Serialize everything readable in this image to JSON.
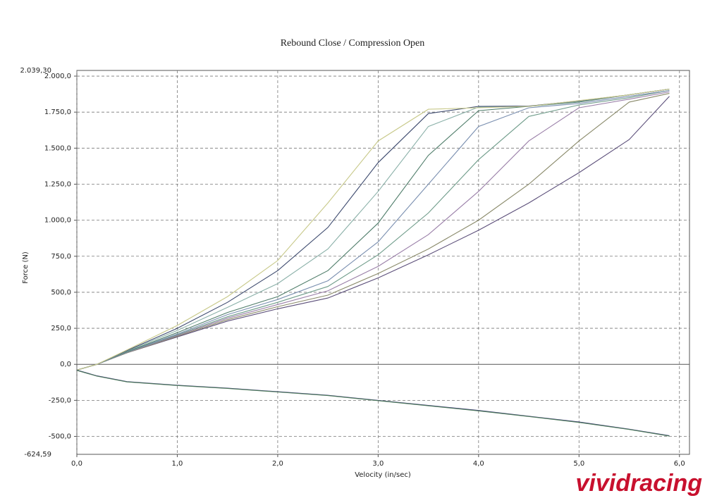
{
  "chart_data": {
    "type": "line",
    "title": "Rebound Close / Compression Open",
    "x_label": "Velocity (in/sec)",
    "y_label": "Force (N)",
    "watermark": "vividracing",
    "xlim": [
      0,
      6.1
    ],
    "ylim": [
      -624.59,
      2039.3
    ],
    "ylim_labels": [
      "-624,59",
      "2.039,30"
    ],
    "grid": true,
    "xticks": [
      {
        "value": 0,
        "label": "0,0"
      },
      {
        "value": 1,
        "label": "1,0"
      },
      {
        "value": 2,
        "label": "2,0"
      },
      {
        "value": 3,
        "label": "3,0"
      },
      {
        "value": 4,
        "label": "4,0"
      },
      {
        "value": 5,
        "label": "5,0"
      },
      {
        "value": 6,
        "label": "6,0"
      }
    ],
    "yticks": [
      {
        "value": -500,
        "label": "-500,0"
      },
      {
        "value": -250,
        "label": "-250,0"
      },
      {
        "value": 0,
        "label": "0,0"
      },
      {
        "value": 250,
        "label": "250,0"
      },
      {
        "value": 500,
        "label": "500,0"
      },
      {
        "value": 750,
        "label": "750,0"
      },
      {
        "value": 1000,
        "label": "1.000,0"
      },
      {
        "value": 1250,
        "label": "1.250,0"
      },
      {
        "value": 1500,
        "label": "1.500,0"
      },
      {
        "value": 1750,
        "label": "1.750,0"
      },
      {
        "value": 2000,
        "label": "2.000,0"
      }
    ],
    "x": [
      0,
      0.2,
      0.5,
      1,
      1.5,
      2,
      2.5,
      3,
      3.5,
      4,
      4.5,
      5,
      5.5,
      5.9
    ],
    "series": [
      {
        "color": "#5c4f7a",
        "values": [
          -40,
          0,
          80,
          190,
          300,
          385,
          460,
          600,
          760,
          930,
          1120,
          1330,
          1560,
          1860
        ]
      },
      {
        "color": "#8a8a6a",
        "values": [
          -40,
          0,
          80,
          195,
          310,
          400,
          480,
          630,
          800,
          1000,
          1250,
          1550,
          1820,
          1880
        ]
      },
      {
        "color": "#9a7fa8",
        "values": [
          -40,
          0,
          82,
          200,
          320,
          415,
          510,
          680,
          900,
          1200,
          1550,
          1780,
          1840,
          1890
        ]
      },
      {
        "color": "#6f9c8a",
        "values": [
          -40,
          0,
          84,
          205,
          330,
          430,
          540,
          760,
          1050,
          1420,
          1720,
          1800,
          1850,
          1900
        ]
      },
      {
        "color": "#7a8fb0",
        "values": [
          -40,
          0,
          86,
          210,
          345,
          450,
          580,
          850,
          1250,
          1650,
          1780,
          1810,
          1860,
          1900
        ]
      },
      {
        "color": "#4f7d6a",
        "values": [
          -40,
          0,
          88,
          220,
          360,
          470,
          650,
          980,
          1450,
          1760,
          1790,
          1820,
          1870,
          1910
        ]
      },
      {
        "color": "#8ab0a8",
        "values": [
          -40,
          0,
          92,
          235,
          395,
          560,
          800,
          1200,
          1650,
          1785,
          1790,
          1825,
          1870,
          1910
        ]
      },
      {
        "color": "#3d4a6e",
        "values": [
          -40,
          0,
          96,
          250,
          430,
          650,
          950,
          1400,
          1740,
          1790,
          1792,
          1828,
          1870,
          1910
        ]
      },
      {
        "color": "#c8c98a",
        "values": [
          -40,
          0,
          100,
          270,
          470,
          720,
          1120,
          1550,
          1770,
          1780,
          1790,
          1830,
          1870,
          1910
        ]
      },
      {
        "color": "#3f3a78",
        "values": [
          -40,
          -80,
          -120,
          -145,
          -165,
          -190,
          -215,
          -250,
          -285,
          -320,
          -360,
          -400,
          -450,
          -495
        ]
      },
      {
        "color": "#4d7a5a",
        "values": [
          -42,
          -82,
          -122,
          -147,
          -167,
          -192,
          -217,
          -252,
          -288,
          -323,
          -362,
          -403,
          -452,
          -498
        ]
      }
    ]
  }
}
